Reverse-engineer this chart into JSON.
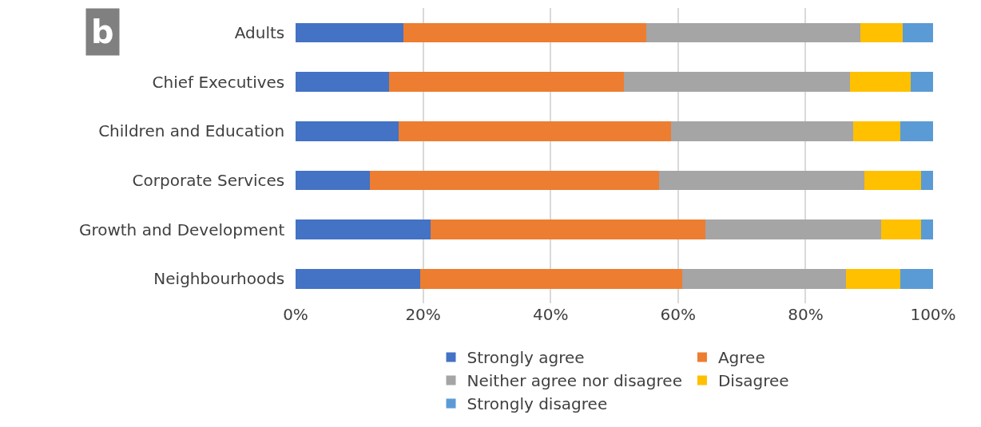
{
  "chart_data": {
    "type": "bar",
    "orientation": "horizontal",
    "stacked": true,
    "categories": [
      "Adults",
      "Chief Executives",
      "Children and Education",
      "Corporate Services",
      "Growth and Development",
      "Neighbourhoods"
    ],
    "series": [
      {
        "name": "Strongly agree",
        "color": "#4472c4",
        "values": [
          16.9,
          14.6,
          16.2,
          11.7,
          21.2,
          19.5
        ]
      },
      {
        "name": "Agree",
        "color": "#ed7d31",
        "values": [
          38.1,
          36.9,
          42.7,
          45.3,
          43.1,
          41.1
        ]
      },
      {
        "name": "Neither agree nor disagree",
        "color": "#a5a5a5",
        "values": [
          33.6,
          35.5,
          28.6,
          32.2,
          27.5,
          25.7
        ]
      },
      {
        "name": "Disagree",
        "color": "#ffc000",
        "values": [
          6.6,
          9.5,
          7.4,
          8.9,
          6.3,
          8.5
        ]
      },
      {
        "name": "Strongly disagree",
        "color": "#5b9bd5",
        "values": [
          4.8,
          3.5,
          5.1,
          1.9,
          1.9,
          5.2
        ]
      }
    ],
    "xlim": [
      0,
      100
    ],
    "xticks": [
      {
        "value": 0,
        "label": "0%"
      },
      {
        "value": 20,
        "label": "20%"
      },
      {
        "value": 40,
        "label": "40%"
      },
      {
        "value": 60,
        "label": "60%"
      },
      {
        "value": 80,
        "label": "80%"
      },
      {
        "value": 100,
        "label": "100%"
      }
    ],
    "grid": "x",
    "legend": "bottom",
    "annotations": [
      "b"
    ]
  }
}
